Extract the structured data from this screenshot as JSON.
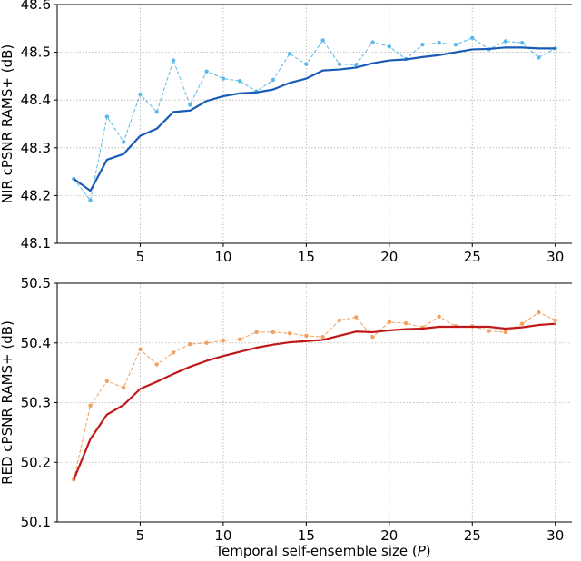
{
  "figure": {
    "xlabel_prefix": "Temporal self-ensemble size (",
    "xlabel_var": "P",
    "xlabel_suffix": ")"
  },
  "chart_data": [
    {
      "type": "line",
      "title": "",
      "xlabel": "",
      "ylabel": "NIR cPSNR RAMS+ (dB)",
      "xlim": [
        0,
        31
      ],
      "ylim": [
        48.1,
        48.6
      ],
      "xticks": [
        5,
        10,
        15,
        20,
        25,
        30
      ],
      "yticks": [
        48.1,
        48.2,
        48.3,
        48.4,
        48.5,
        48.6
      ],
      "grid": true,
      "x": [
        1,
        2,
        3,
        4,
        5,
        6,
        7,
        8,
        9,
        10,
        11,
        12,
        13,
        14,
        15,
        16,
        17,
        18,
        19,
        20,
        21,
        22,
        23,
        24,
        25,
        26,
        27,
        28,
        29,
        30
      ],
      "series": [
        {
          "role": "per-P (thin, markers)",
          "color": "#5bb8e8",
          "values": [
            48.235,
            48.19,
            48.365,
            48.312,
            48.412,
            48.375,
            48.483,
            48.39,
            48.46,
            48.445,
            48.44,
            48.418,
            48.442,
            48.497,
            48.475,
            48.525,
            48.475,
            48.474,
            48.521,
            48.512,
            48.486,
            48.516,
            48.52,
            48.516,
            48.53,
            48.506,
            48.523,
            48.52,
            48.489,
            48.508
          ]
        },
        {
          "role": "cumulative (thick)",
          "color": "#1a5cb5",
          "values": [
            48.235,
            48.21,
            48.275,
            48.287,
            48.325,
            48.34,
            48.375,
            48.378,
            48.398,
            48.408,
            48.414,
            48.416,
            48.422,
            48.436,
            48.445,
            48.462,
            48.464,
            48.468,
            48.477,
            48.483,
            48.485,
            48.49,
            48.494,
            48.5,
            48.506,
            48.507,
            48.51,
            48.51,
            48.508,
            48.508
          ]
        }
      ]
    },
    {
      "type": "line",
      "title": "",
      "xlabel": "",
      "ylabel": "RED cPSNR RAMS+ (dB)",
      "xlim": [
        0,
        31
      ],
      "ylim": [
        50.1,
        50.5
      ],
      "xticks": [
        5,
        10,
        15,
        20,
        25,
        30
      ],
      "yticks": [
        50.1,
        50.2,
        50.3,
        50.4,
        50.5
      ],
      "grid": true,
      "x": [
        1,
        2,
        3,
        4,
        5,
        6,
        7,
        8,
        9,
        10,
        11,
        12,
        13,
        14,
        15,
        16,
        17,
        18,
        19,
        20,
        21,
        22,
        23,
        24,
        25,
        26,
        27,
        28,
        29,
        30
      ],
      "series": [
        {
          "role": "per-P (thin, markers)",
          "color": "#f0a060",
          "values": [
            50.171,
            50.295,
            50.336,
            50.325,
            50.389,
            50.364,
            50.384,
            50.398,
            50.4,
            50.404,
            50.406,
            50.418,
            50.418,
            50.416,
            50.412,
            50.41,
            50.438,
            50.443,
            50.41,
            50.435,
            50.433,
            50.426,
            50.444,
            50.428,
            50.428,
            50.42,
            50.418,
            50.432,
            50.451,
            50.438
          ]
        },
        {
          "role": "cumulative (thick)",
          "color": "#c01818",
          "values": [
            50.171,
            50.239,
            50.28,
            50.296,
            50.323,
            50.335,
            50.348,
            50.36,
            50.37,
            50.378,
            50.385,
            50.392,
            50.397,
            50.401,
            50.403,
            50.405,
            50.412,
            50.419,
            50.418,
            50.421,
            50.423,
            50.424,
            50.427,
            50.427,
            50.427,
            50.427,
            50.424,
            50.426,
            50.43,
            50.432
          ]
        }
      ]
    }
  ]
}
